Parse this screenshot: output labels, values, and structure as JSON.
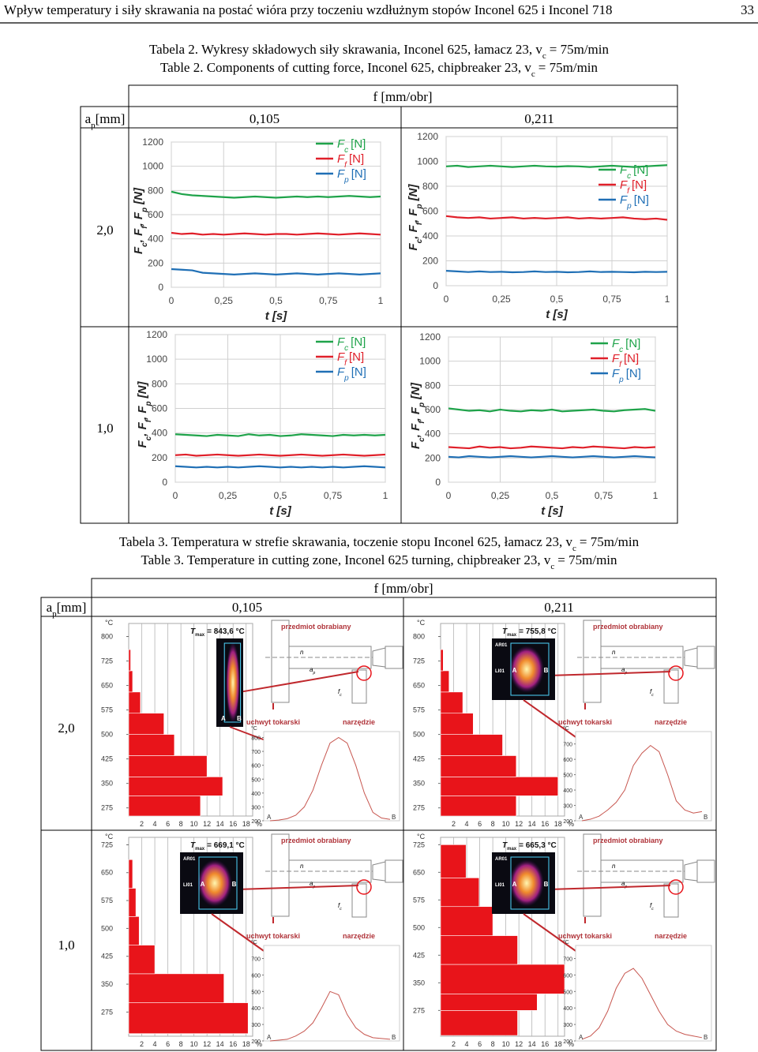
{
  "header": {
    "title": "Wpływ temperatury i siły skrawania na postać wióra przy toczeniu wzdłużnym stopów Inconel 625 i Inconel 718",
    "page": "33"
  },
  "table2": {
    "caption_pl": {
      "text": "Tabela 2. Wykresy składowych siły skrawania, Inconel 625, łamacz 23, v",
      "sub": "c",
      "tail": "= 75m/min"
    },
    "caption_en": {
      "text": "Table 2. Components of cutting force, Inconel 625, chipbreaker 23, v",
      "sub": "c",
      "tail": "= 75m/min"
    },
    "col_header": "f [mm/obr]",
    "row_header": {
      "text": "a",
      "sub": "p",
      "tail": "[mm]"
    },
    "columns": [
      "0,105",
      "0,211"
    ],
    "rows": [
      "2,0",
      "1,0"
    ],
    "x_label": "t [s]",
    "y_label": [
      {
        "text": "F",
        "sub": "c"
      },
      {
        "text": ", F",
        "sub": "f"
      },
      {
        "text": ", F",
        "sub": "p"
      }
    ],
    "y_unit": "[N]",
    "xlim": [
      0,
      1
    ],
    "ylim": [
      0,
      1200
    ],
    "xticks": [
      0,
      {
        "value": 0.25,
        "label": "0,25"
      },
      {
        "value": 0.5,
        "label": "0,5"
      },
      {
        "value": 0.75,
        "label": "0,75"
      },
      1
    ],
    "yticks": [
      0,
      200,
      400,
      600,
      800,
      1000,
      1200
    ],
    "legend": [
      {
        "text": "F",
        "sub": "c",
        "unit": "[N]",
        "color": "#1fa34a"
      },
      {
        "text": "F",
        "sub": "f",
        "unit": "[N]",
        "color": "#e0202a"
      },
      {
        "text": "F",
        "sub": "p",
        "unit": "[N]",
        "color": "#1f6fb5"
      }
    ],
    "x": [
      0,
      0.05,
      0.1,
      0.15,
      0.2,
      0.25,
      0.3,
      0.35,
      0.4,
      0.45,
      0.5,
      0.55,
      0.6,
      0.65,
      0.7,
      0.75,
      0.8,
      0.85,
      0.9,
      0.95,
      1
    ],
    "charts": [
      {
        "series": [
          [
            790,
            770,
            760,
            755,
            750,
            745,
            740,
            745,
            750,
            745,
            740,
            745,
            750,
            745,
            750,
            745,
            750,
            755,
            750,
            745,
            750
          ],
          [
            450,
            440,
            445,
            435,
            440,
            435,
            440,
            445,
            440,
            435,
            440,
            440,
            435,
            440,
            445,
            440,
            435,
            440,
            445,
            440,
            435
          ],
          [
            150,
            145,
            140,
            120,
            115,
            110,
            105,
            110,
            115,
            110,
            105,
            110,
            115,
            110,
            105,
            110,
            115,
            110,
            105,
            110,
            115
          ]
        ]
      },
      {
        "series": [
          [
            960,
            965,
            955,
            960,
            965,
            960,
            955,
            960,
            965,
            960,
            958,
            962,
            960,
            955,
            960,
            965,
            960,
            955,
            960,
            965,
            970
          ],
          [
            560,
            550,
            545,
            550,
            540,
            545,
            550,
            540,
            545,
            540,
            545,
            550,
            540,
            545,
            540,
            545,
            550,
            540,
            535,
            540,
            530
          ],
          [
            120,
            115,
            110,
            115,
            110,
            112,
            108,
            110,
            115,
            110,
            112,
            108,
            110,
            115,
            110,
            112,
            110,
            108,
            112,
            110,
            112
          ]
        ]
      },
      {
        "series": [
          [
            390,
            385,
            380,
            375,
            385,
            380,
            375,
            390,
            380,
            385,
            375,
            380,
            390,
            385,
            380,
            375,
            385,
            380,
            385,
            380,
            385
          ],
          [
            220,
            225,
            215,
            220,
            225,
            220,
            215,
            220,
            225,
            220,
            215,
            220,
            225,
            220,
            215,
            220,
            225,
            220,
            215,
            220,
            225
          ],
          [
            130,
            125,
            120,
            125,
            120,
            125,
            120,
            125,
            130,
            125,
            120,
            125,
            120,
            125,
            120,
            125,
            120,
            125,
            130,
            125,
            120
          ]
        ]
      },
      {
        "series": [
          [
            610,
            600,
            590,
            595,
            585,
            600,
            590,
            585,
            595,
            590,
            600,
            585,
            590,
            595,
            600,
            590,
            585,
            595,
            600,
            605,
            590
          ],
          [
            290,
            285,
            280,
            295,
            285,
            290,
            280,
            285,
            295,
            290,
            285,
            280,
            290,
            285,
            295,
            290,
            285,
            280,
            290,
            285,
            290
          ],
          [
            210,
            205,
            215,
            210,
            205,
            210,
            215,
            210,
            205,
            210,
            215,
            210,
            205,
            210,
            215,
            210,
            205,
            210,
            215,
            210,
            205
          ]
        ]
      }
    ]
  },
  "table3": {
    "caption_pl": {
      "text": "Tabela 3. Temperatura w strefie skrawania, toczenie stopu Inconel 625, łamacz 23, v",
      "sub": "c",
      "tail": "= 75m/min"
    },
    "caption_en": {
      "text": "Table 3. Temperature in cutting zone, Inconel 625 turning, chipbreaker 23, v",
      "sub": "c",
      "tail": "= 75m/min"
    },
    "col_header": "f [mm/obr]",
    "row_header": {
      "text": "a",
      "sub": "p",
      "tail": "[mm]"
    },
    "columns": [
      "0,105",
      "0,211"
    ],
    "rows": [
      "2,0",
      "1,0"
    ],
    "temp_unit": "°C",
    "pct_unit": "%",
    "hist_xlim": [
      0,
      19
    ],
    "hist_xticks": [
      2,
      4,
      6,
      8,
      10,
      12,
      14,
      16,
      18
    ],
    "tmax": {
      "text": "T",
      "sub": "max"
    },
    "workpiece": "przedmiot obrabiany",
    "chuck": "uchwyt tokarski",
    "tool": "narzędzie",
    "rotation": "n",
    "depth": {
      "text": "a",
      "sub": "p"
    },
    "feed": {
      "text": "f",
      "sub": "c"
    },
    "profile_ends": [
      "A",
      "B"
    ],
    "cells": [
      {
        "tmax_value": "= 843,6 °C",
        "image_labels": [
          "A",
          "B"
        ],
        "hist": {
          "ylim": [
            250,
            840
          ],
          "yticks": [
            275,
            350,
            425,
            500,
            575,
            650,
            725,
            800
          ],
          "bins": [
            250,
            312,
            370,
            435,
            500,
            565,
            630,
            695,
            760
          ],
          "values": [
            11,
            14.4,
            12,
            7,
            5.4,
            1.8,
            0.6,
            0.3
          ]
        },
        "profile": {
          "ylim": [
            200,
            820
          ],
          "yticks": [
            200,
            300,
            400,
            500,
            600,
            700,
            800
          ],
          "values": [
            200,
            205,
            215,
            240,
            300,
            420,
            600,
            760,
            800,
            760,
            600,
            400,
            260,
            220,
            210
          ]
        }
      },
      {
        "tmax_value": "= 755,8 °C",
        "image_labels": [
          "AR01",
          "LI01",
          "A",
          "B"
        ],
        "hist": {
          "ylim": [
            250,
            840
          ],
          "yticks": [
            275,
            350,
            425,
            500,
            575,
            650,
            725,
            800
          ],
          "bins": [
            250,
            312,
            370,
            435,
            500,
            565,
            630,
            695,
            760
          ],
          "values": [
            11.6,
            18,
            11.6,
            9.5,
            5,
            3.4,
            1.3,
            0.4
          ]
        },
        "profile": {
          "ylim": [
            200,
            760
          ],
          "yticks": [
            200,
            300,
            400,
            500,
            600,
            700
          ],
          "values": [
            200,
            210,
            230,
            270,
            320,
            400,
            560,
            640,
            690,
            650,
            500,
            330,
            270,
            250,
            260
          ]
        }
      },
      {
        "tmax_value": "= 669,1 °C",
        "image_labels": [
          "AR01",
          "LI01",
          "A",
          "B"
        ],
        "hist": {
          "ylim": [
            210,
            745
          ],
          "yticks": [
            275,
            350,
            425,
            500,
            575,
            650,
            725
          ],
          "bins": [
            217,
            300,
            378,
            455,
            532,
            608,
            685
          ],
          "values": [
            18.3,
            14.6,
            4,
            1.6,
            1.1,
            0.6
          ]
        },
        "profile": {
          "ylim": [
            200,
            760
          ],
          "yticks": [
            200,
            300,
            400,
            500,
            600,
            700
          ],
          "values": [
            200,
            205,
            210,
            230,
            260,
            310,
            400,
            500,
            480,
            360,
            280,
            240,
            220,
            215,
            210
          ]
        }
      },
      {
        "tmax_value": "= 665,3 °C",
        "image_labels": [
          "AR01",
          "LI01",
          "A",
          "B"
        ],
        "hist": {
          "ylim": [
            205,
            745
          ],
          "yticks": [
            275,
            350,
            425,
            500,
            575,
            650,
            725
          ],
          "bins": [
            207,
            275,
            320,
            400,
            478,
            557,
            635,
            725
          ],
          "values": [
            11.8,
            14.8,
            19,
            11.8,
            8,
            5.9,
            3.9
          ]
        },
        "profile": {
          "ylim": [
            200,
            760
          ],
          "yticks": [
            200,
            300,
            400,
            500,
            600,
            700
          ],
          "values": [
            210,
            230,
            280,
            380,
            520,
            610,
            640,
            580,
            480,
            380,
            300,
            260,
            240,
            230,
            220
          ]
        }
      }
    ]
  }
}
